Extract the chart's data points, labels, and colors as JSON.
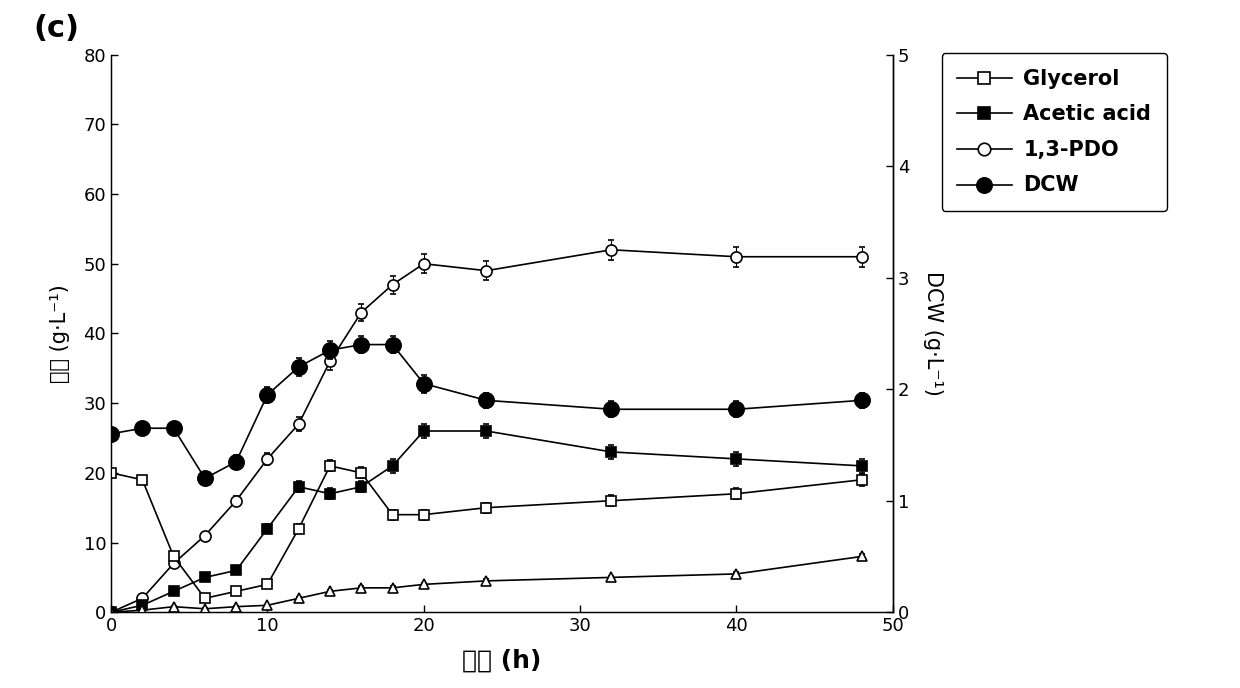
{
  "panel_label": "(c)",
  "xlabel": "时间 (h)",
  "ylabel_left": "浓度 (g·L⁻¹)",
  "ylabel_right": "DCW (g·L⁻¹)",
  "xlim": [
    0,
    50
  ],
  "ylim_left": [
    0,
    80
  ],
  "ylim_right": [
    0,
    5
  ],
  "xticks": [
    0,
    10,
    20,
    30,
    40,
    50
  ],
  "yticks_left": [
    0,
    10,
    20,
    30,
    40,
    50,
    60,
    70,
    80
  ],
  "yticks_right": [
    0,
    1,
    2,
    3,
    4,
    5
  ],
  "background_color": "#ffffff",
  "series": {
    "glycerol": {
      "label": "Glycerol",
      "x": [
        0,
        2,
        4,
        6,
        8,
        10,
        12,
        14,
        16,
        18,
        20,
        24,
        32,
        40,
        48
      ],
      "y": [
        20,
        19,
        8,
        2,
        3,
        4,
        12,
        21,
        20,
        14,
        14,
        15,
        16,
        17,
        19
      ],
      "yerr": [
        0.5,
        0.5,
        0.5,
        0.3,
        0.3,
        0.4,
        0.7,
        0.8,
        0.8,
        0.7,
        0.7,
        0.7,
        0.8,
        0.8,
        0.9
      ]
    },
    "acetic_acid": {
      "label": "Acetic acid",
      "x": [
        0,
        2,
        4,
        6,
        8,
        10,
        12,
        14,
        16,
        18,
        20,
        24,
        32,
        40,
        48
      ],
      "y": [
        0,
        1,
        3,
        5,
        6,
        12,
        18,
        17,
        18,
        21,
        26,
        26,
        23,
        22,
        21
      ],
      "yerr": [
        0.2,
        0.2,
        0.3,
        0.3,
        0.4,
        0.6,
        0.8,
        0.8,
        0.8,
        1.0,
        1.0,
        1.0,
        1.0,
        1.0,
        1.0
      ]
    },
    "pdo": {
      "label": "1,3-PDO",
      "x": [
        0,
        2,
        4,
        6,
        8,
        10,
        12,
        14,
        16,
        18,
        20,
        24,
        32,
        40,
        48
      ],
      "y": [
        0,
        2,
        7,
        11,
        16,
        22,
        27,
        36,
        43,
        47,
        50,
        49,
        52,
        51,
        51
      ],
      "yerr": [
        0.2,
        0.3,
        0.4,
        0.5,
        0.7,
        0.9,
        1.0,
        1.2,
        1.2,
        1.3,
        1.4,
        1.4,
        1.4,
        1.4,
        1.4
      ]
    },
    "dcw": {
      "label": "DCW",
      "x": [
        0,
        2,
        4,
        6,
        8,
        10,
        12,
        14,
        16,
        18,
        20,
        24,
        32,
        40,
        48
      ],
      "y": [
        1.6,
        1.65,
        1.65,
        1.2,
        1.35,
        1.95,
        2.2,
        2.35,
        2.4,
        2.4,
        2.05,
        1.9,
        1.82,
        1.82,
        1.9
      ],
      "yerr": [
        0.05,
        0.06,
        0.06,
        0.05,
        0.06,
        0.07,
        0.08,
        0.08,
        0.08,
        0.08,
        0.08,
        0.07,
        0.07,
        0.07,
        0.07
      ]
    },
    "triangle": {
      "label": "",
      "x": [
        0,
        2,
        4,
        6,
        8,
        10,
        12,
        14,
        16,
        18,
        20,
        24,
        32,
        40,
        48
      ],
      "y": [
        0,
        0.3,
        0.8,
        0.5,
        0.8,
        1.0,
        2.0,
        3.0,
        3.5,
        3.5,
        4.0,
        4.5,
        5.0,
        5.5,
        8.0
      ],
      "yerr": [
        0.1,
        0.1,
        0.1,
        0.1,
        0.1,
        0.1,
        0.2,
        0.2,
        0.2,
        0.2,
        0.2,
        0.2,
        0.2,
        0.3,
        0.3
      ]
    }
  },
  "legend_labels": [
    "Glycerol",
    "Acetic acid",
    "1,3-PDO",
    "DCW"
  ]
}
